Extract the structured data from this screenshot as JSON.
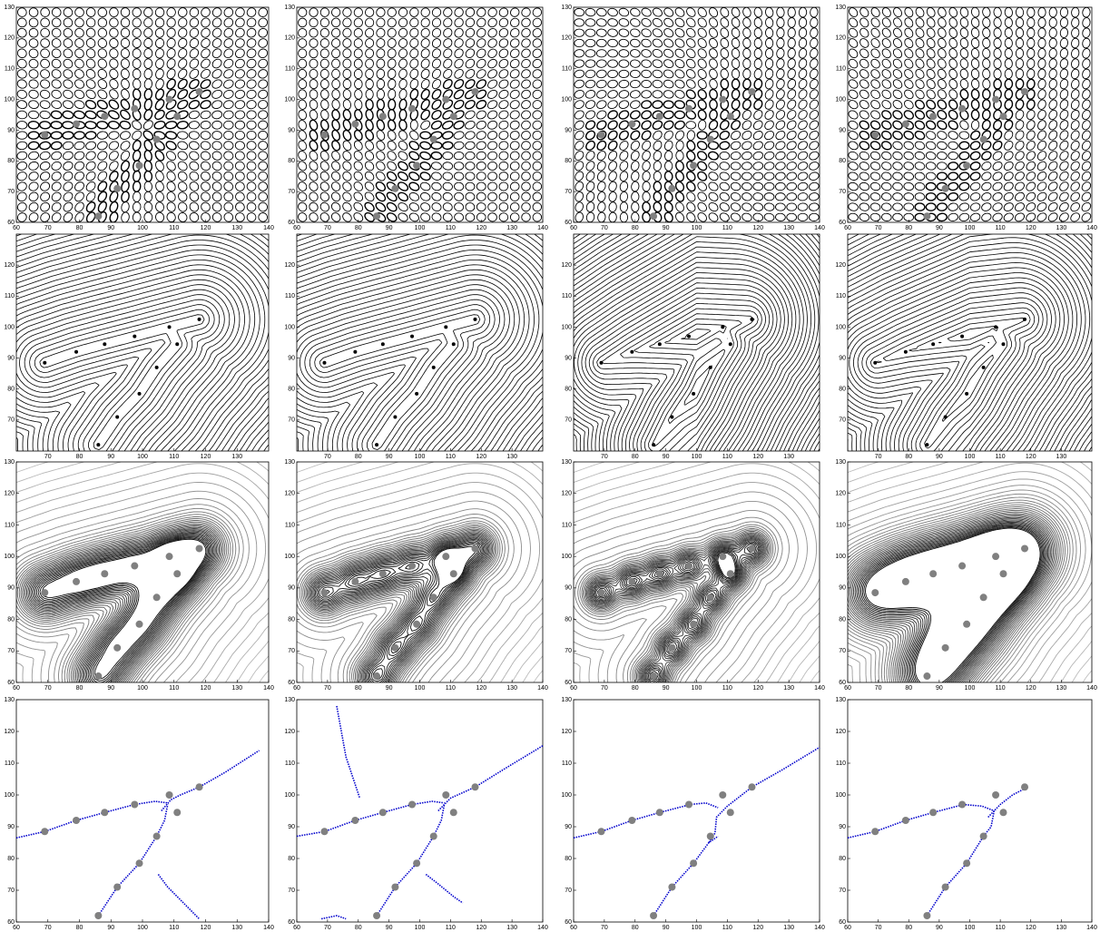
{
  "chart_data": [
    {
      "type": "scatter",
      "x": [
        69,
        79,
        88,
        97.5,
        108.5,
        111,
        104.5,
        99,
        92,
        86,
        118
      ],
      "y": [
        88.5,
        92,
        94.5,
        97,
        100,
        94.5,
        87,
        78.5,
        71,
        62,
        102.5
      ],
      "color": "#808080",
      "xlim": [
        60,
        140
      ],
      "ylim": [
        60,
        130
      ],
      "xticks": [
        60,
        70,
        80,
        90,
        100,
        110,
        120,
        130,
        140
      ],
      "yticks": [
        60,
        70,
        80,
        90,
        100,
        110,
        120,
        130
      ]
    },
    {
      "type": "scatter",
      "x": [
        69,
        79,
        88,
        97.5,
        108.5,
        111,
        104.5,
        99,
        92,
        86,
        118
      ],
      "y": [
        88.5,
        92,
        94.5,
        97,
        100,
        94.5,
        87,
        78.5,
        71,
        62,
        102.5
      ],
      "color": "#808080",
      "xlim": [
        60,
        140
      ],
      "ylim": [
        60,
        130
      ],
      "xticks": [
        60,
        70,
        80,
        90,
        100,
        110,
        120,
        130,
        140
      ],
      "yticks": [
        60,
        70,
        80,
        90,
        100,
        110,
        120,
        130
      ]
    },
    {
      "type": "scatter",
      "x": [
        69,
        79,
        88,
        97.5,
        108.5,
        111,
        104.5,
        99,
        92,
        86,
        118
      ],
      "y": [
        88.5,
        92,
        94.5,
        97,
        100,
        94.5,
        87,
        78.5,
        71,
        62,
        102.5
      ],
      "color": "#808080",
      "xlim": [
        60,
        140
      ],
      "ylim": [
        60,
        130
      ],
      "xticks": [
        60,
        70,
        80,
        90,
        100,
        110,
        120,
        130,
        140
      ],
      "yticks": [
        60,
        70,
        80,
        90,
        100,
        110,
        120,
        130
      ]
    },
    {
      "type": "scatter",
      "x": [
        69,
        79,
        88,
        97.5,
        108.5,
        111,
        104.5,
        99,
        92,
        86,
        118
      ],
      "y": [
        88.5,
        92,
        94.5,
        97,
        100,
        94.5,
        87,
        78.5,
        71,
        62,
        102.5
      ],
      "color": "#808080",
      "xlim": [
        60,
        140
      ],
      "ylim": [
        60,
        130
      ],
      "xticks": [
        60,
        70,
        80,
        90,
        100,
        110,
        120,
        130,
        140
      ],
      "yticks": [
        60,
        70,
        80,
        90,
        100,
        110,
        120,
        130
      ]
    },
    {
      "type": "scatter",
      "x": [
        69,
        79,
        88,
        97.5,
        108.5,
        111,
        104.5,
        99,
        92,
        86,
        118
      ],
      "y": [
        88.5,
        92,
        94.5,
        97,
        100,
        94.5,
        87,
        78.5,
        71,
        62,
        102.5
      ],
      "color": "#000000",
      "xlim": [
        60,
        140
      ],
      "ylim": [
        60,
        130
      ],
      "xticks": [
        70,
        80,
        90,
        100,
        110,
        120,
        130
      ],
      "yticks": [
        70,
        80,
        90,
        100,
        110,
        120
      ]
    },
    {
      "type": "scatter",
      "x": [
        69,
        79,
        88,
        97.5,
        108.5,
        111,
        104.5,
        99,
        92,
        86,
        118
      ],
      "y": [
        88.5,
        92,
        94.5,
        97,
        100,
        94.5,
        87,
        78.5,
        71,
        62,
        102.5
      ],
      "color": "#000000",
      "xlim": [
        60,
        140
      ],
      "ylim": [
        60,
        130
      ],
      "xticks": [
        70,
        80,
        90,
        100,
        110,
        120,
        130
      ],
      "yticks": [
        70,
        80,
        90,
        100,
        110,
        120
      ]
    },
    {
      "type": "scatter",
      "x": [
        69,
        79,
        88,
        97.5,
        108.5,
        111,
        104.5,
        99,
        92,
        86,
        118
      ],
      "y": [
        88.5,
        92,
        94.5,
        97,
        100,
        94.5,
        87,
        78.5,
        71,
        62,
        102.5
      ],
      "color": "#000000",
      "xlim": [
        60,
        140
      ],
      "ylim": [
        60,
        130
      ],
      "xticks": [
        70,
        80,
        90,
        100,
        110,
        120,
        130
      ],
      "yticks": [
        70,
        80,
        90,
        100,
        110,
        120
      ]
    },
    {
      "type": "scatter",
      "x": [
        69,
        79,
        88,
        97.5,
        108.5,
        111,
        104.5,
        99,
        92,
        86,
        118
      ],
      "y": [
        88.5,
        92,
        94.5,
        97,
        100,
        94.5,
        87,
        78.5,
        71,
        62,
        102.5
      ],
      "color": "#000000",
      "xlim": [
        60,
        140
      ],
      "ylim": [
        60,
        130
      ],
      "xticks": [
        70,
        80,
        90,
        100,
        110,
        120,
        130
      ],
      "yticks": [
        70,
        80,
        90,
        100,
        110,
        120
      ]
    },
    {
      "type": "scatter",
      "x": [
        69,
        79,
        88,
        97.5,
        108.5,
        111,
        104.5,
        99,
        92,
        86,
        118
      ],
      "y": [
        88.5,
        92,
        94.5,
        97,
        100,
        94.5,
        87,
        78.5,
        71,
        62,
        102.5
      ],
      "color": "#808080",
      "xlim": [
        60,
        140
      ],
      "ylim": [
        60,
        130
      ],
      "xticks": [
        60,
        70,
        80,
        90,
        100,
        110,
        120,
        130,
        140
      ],
      "yticks": [
        60,
        70,
        80,
        90,
        100,
        110,
        120,
        130
      ]
    },
    {
      "type": "scatter",
      "x": [
        69,
        79,
        88,
        97.5,
        108.5,
        111,
        104.5,
        99,
        92,
        86,
        118
      ],
      "y": [
        88.5,
        92,
        94.5,
        97,
        100,
        94.5,
        87,
        78.5,
        71,
        62,
        102.5
      ],
      "color": "#808080",
      "xlim": [
        60,
        140
      ],
      "ylim": [
        60,
        130
      ],
      "xticks": [
        60,
        70,
        80,
        90,
        100,
        110,
        120,
        130,
        140
      ],
      "yticks": [
        60,
        70,
        80,
        90,
        100,
        110,
        120,
        130
      ]
    },
    {
      "type": "scatter",
      "x": [
        69,
        79,
        88,
        97.5,
        108.5,
        111,
        104.5,
        99,
        92,
        86,
        118
      ],
      "y": [
        88.5,
        92,
        94.5,
        97,
        100,
        94.5,
        87,
        78.5,
        71,
        62,
        102.5
      ],
      "color": "#808080",
      "xlim": [
        60,
        140
      ],
      "ylim": [
        60,
        130
      ],
      "xticks": [
        60,
        70,
        80,
        90,
        100,
        110,
        120,
        130,
        140
      ],
      "yticks": [
        60,
        70,
        80,
        90,
        100,
        110,
        120,
        130
      ]
    },
    {
      "type": "scatter",
      "x": [
        69,
        79,
        88,
        97.5,
        108.5,
        111,
        104.5,
        99,
        92,
        86,
        118
      ],
      "y": [
        88.5,
        92,
        94.5,
        97,
        100,
        94.5,
        87,
        78.5,
        71,
        62,
        102.5
      ],
      "color": "#808080",
      "xlim": [
        60,
        140
      ],
      "ylim": [
        60,
        130
      ],
      "xticks": [
        60,
        70,
        80,
        90,
        100,
        110,
        120,
        130,
        140
      ],
      "yticks": [
        60,
        70,
        80,
        90,
        100,
        110,
        120,
        130
      ]
    },
    {
      "type": "scatter",
      "x": [
        69,
        79,
        88,
        97.5,
        108.5,
        111,
        104.5,
        99,
        92,
        86,
        118
      ],
      "y": [
        88.5,
        92,
        94.5,
        97,
        100,
        94.5,
        87,
        78.5,
        71,
        62,
        102.5
      ],
      "color": "#808080",
      "xlim": [
        60,
        140
      ],
      "ylim": [
        60,
        130
      ],
      "xticks": [
        60,
        70,
        80,
        90,
        100,
        110,
        120,
        130,
        140
      ],
      "yticks": [
        60,
        70,
        80,
        90,
        100,
        110,
        120,
        130
      ],
      "series": [
        {
          "color": "#0000cc",
          "x": [
            60,
            69,
            79,
            88,
            97.5,
            104,
            108
          ],
          "y": [
            86.5,
            88.5,
            92,
            94.5,
            97,
            98,
            97.5
          ]
        },
        {
          "color": "#0000cc",
          "x": [
            106,
            109,
            112,
            118,
            126,
            137
          ],
          "y": [
            95,
            98.5,
            100,
            102.5,
            107,
            114
          ]
        },
        {
          "color": "#0000cc",
          "x": [
            86,
            92,
            99,
            104.5,
            107,
            108
          ],
          "y": [
            62,
            71,
            78.5,
            87,
            92,
            97
          ]
        },
        {
          "color": "#0000cc",
          "x": [
            105,
            108,
            112,
            118
          ],
          "y": [
            75,
            71,
            67,
            61
          ]
        }
      ]
    },
    {
      "type": "scatter",
      "x": [
        69,
        79,
        88,
        97.5,
        108.5,
        111,
        104.5,
        99,
        92,
        86,
        118
      ],
      "y": [
        88.5,
        92,
        94.5,
        97,
        100,
        94.5,
        87,
        78.5,
        71,
        62,
        102.5
      ],
      "color": "#808080",
      "xlim": [
        60,
        140
      ],
      "ylim": [
        60,
        130
      ],
      "xticks": [
        60,
        70,
        80,
        90,
        100,
        110,
        120,
        130,
        140
      ],
      "yticks": [
        60,
        70,
        80,
        90,
        100,
        110,
        120,
        130
      ],
      "series": [
        {
          "color": "#0000cc",
          "x": [
            60,
            69,
            79,
            88,
            97.5,
            104,
            108
          ],
          "y": [
            87,
            88.5,
            92,
            94.5,
            97,
            98,
            97.5
          ]
        },
        {
          "color": "#0000cc",
          "x": [
            106,
            110,
            118,
            128,
            140
          ],
          "y": [
            95,
            99,
            102.5,
            108.5,
            115.5
          ]
        },
        {
          "color": "#0000cc",
          "x": [
            86,
            92,
            99,
            104.5,
            107,
            108
          ],
          "y": [
            62,
            71,
            78.5,
            87,
            92,
            97
          ]
        },
        {
          "color": "#0000cc",
          "x": [
            102,
            106,
            111,
            114
          ],
          "y": [
            75,
            72,
            68,
            66
          ]
        },
        {
          "color": "#0000cc",
          "x": [
            73,
            76,
            80.5
          ],
          "y": [
            128,
            112,
            99
          ]
        },
        {
          "color": "#0000cc",
          "x": [
            68,
            73,
            76
          ],
          "y": [
            61,
            62,
            61
          ]
        }
      ]
    },
    {
      "type": "scatter",
      "x": [
        69,
        79,
        88,
        97.5,
        108.5,
        111,
        104.5,
        99,
        92,
        86,
        118
      ],
      "y": [
        88.5,
        92,
        94.5,
        97,
        100,
        94.5,
        87,
        78.5,
        71,
        62,
        102.5
      ],
      "color": "#808080",
      "xlim": [
        60,
        140
      ],
      "ylim": [
        60,
        130
      ],
      "xticks": [
        60,
        70,
        80,
        90,
        100,
        110,
        120,
        130,
        140
      ],
      "yticks": [
        60,
        70,
        80,
        90,
        100,
        110,
        120,
        130
      ],
      "series": [
        {
          "color": "#0000cc",
          "x": [
            60,
            69,
            79,
            88,
            98,
            103,
            107
          ],
          "y": [
            86.5,
            88.5,
            92,
            94.5,
            97,
            97.5,
            96
          ]
        },
        {
          "color": "#0000cc",
          "x": [
            104,
            106,
            106.5,
            110,
            118,
            128,
            140
          ],
          "y": [
            85,
            88,
            93,
            96.5,
            102.5,
            108,
            115
          ]
        },
        {
          "color": "#0000cc",
          "x": [
            86,
            92,
            99,
            104,
            107
          ],
          "y": [
            62,
            71,
            78.5,
            85,
            87
          ]
        }
      ]
    },
    {
      "type": "scatter",
      "x": [
        69,
        79,
        88,
        97.5,
        108.5,
        111,
        104.5,
        99,
        92,
        86,
        118
      ],
      "y": [
        88.5,
        92,
        94.5,
        97,
        100,
        94.5,
        87,
        78.5,
        71,
        62,
        102.5
      ],
      "color": "#808080",
      "xlim": [
        60,
        140
      ],
      "ylim": [
        60,
        130
      ],
      "xticks": [
        60,
        70,
        80,
        90,
        100,
        110,
        120,
        130,
        140
      ],
      "yticks": [
        60,
        70,
        80,
        90,
        100,
        110,
        120,
        130
      ],
      "series": [
        {
          "color": "#0000cc",
          "x": [
            60,
            69,
            79,
            88,
            98,
            104,
            108
          ],
          "y": [
            86.5,
            88.5,
            92,
            94.5,
            97,
            96.5,
            95
          ]
        },
        {
          "color": "#0000cc",
          "x": [
            106,
            110,
            114,
            119
          ],
          "y": [
            93,
            97,
            100,
            102.5
          ]
        },
        {
          "color": "#0000cc",
          "x": [
            86,
            92,
            99,
            104.5,
            107,
            108
          ],
          "y": [
            62,
            71,
            78.5,
            87,
            90,
            95
          ]
        }
      ]
    }
  ]
}
